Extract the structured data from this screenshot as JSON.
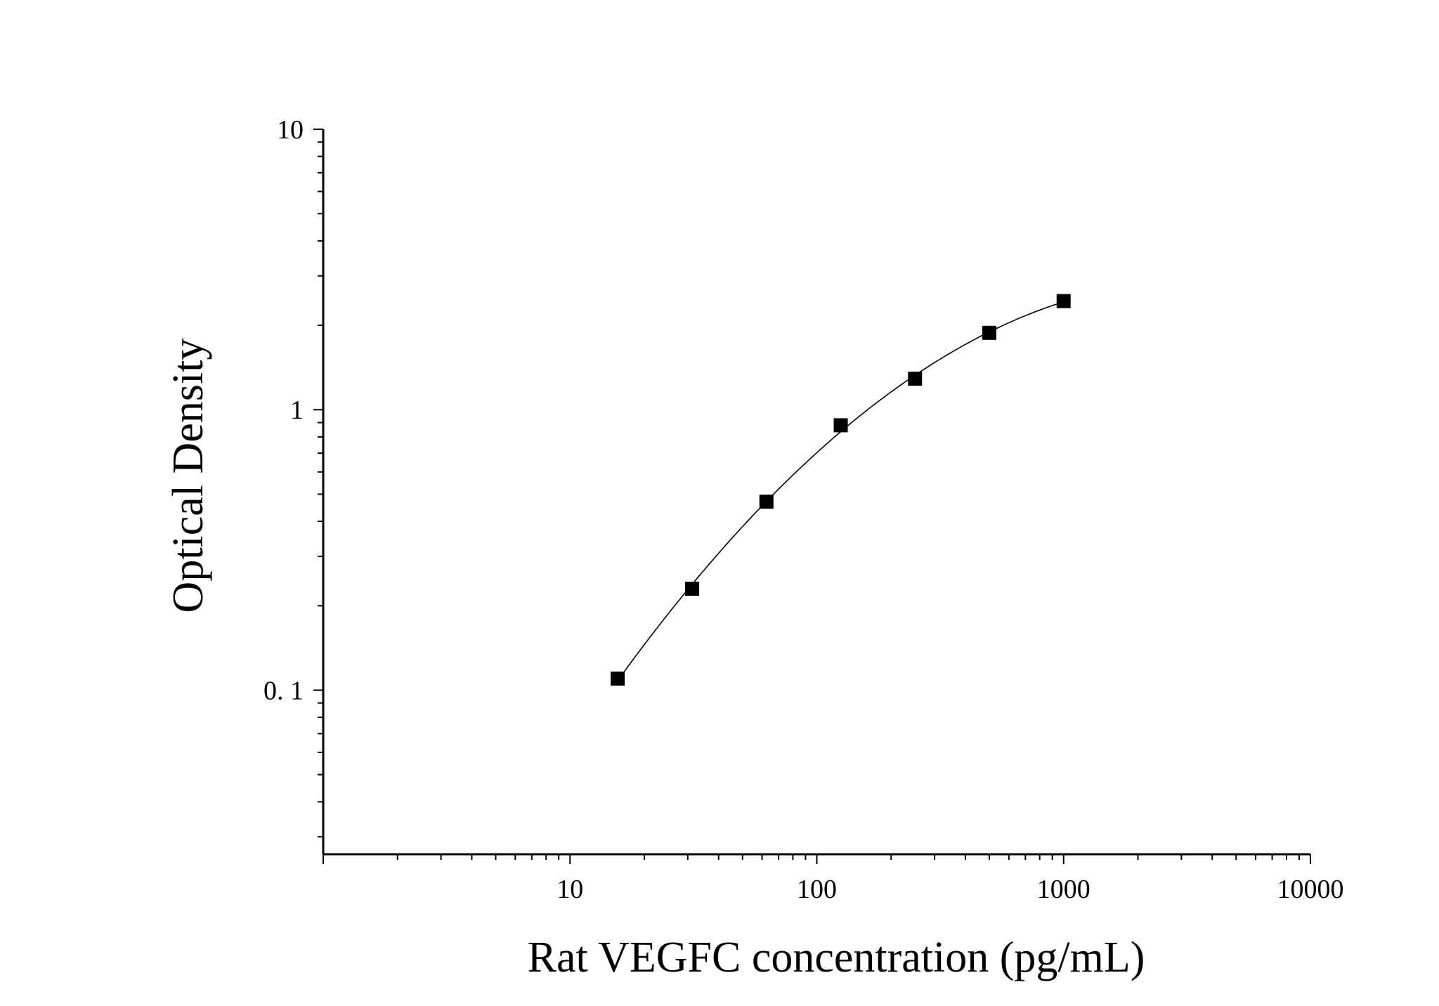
{
  "chart_data": {
    "type": "scatter",
    "title": "",
    "xlabel": "Rat VEGFC concentration (pg/mL)",
    "ylabel": "Optical Density",
    "x_scale": "log",
    "y_scale": "log",
    "xlim": [
      1,
      10000
    ],
    "ylim": [
      0.026,
      10
    ],
    "x_tick_labels": [
      "10",
      "100",
      "1000",
      "10000"
    ],
    "x_tick_values": [
      10,
      100,
      1000,
      10000
    ],
    "y_tick_labels": [
      "0. 1",
      "1",
      "10"
    ],
    "y_tick_values": [
      0.1,
      1,
      10
    ],
    "grid": false,
    "legend": "none",
    "marker": "square",
    "colors": {
      "marker": "#000000",
      "curve": "#000000",
      "axis": "#000000"
    },
    "series": [
      {
        "x": [
          15.6,
          31.25,
          62.5,
          125,
          250,
          500,
          1000
        ],
        "y": [
          0.11,
          0.23,
          0.47,
          0.88,
          1.29,
          1.88,
          2.44
        ]
      }
    ],
    "fit_curve": {
      "type": "smooth",
      "x_range": [
        16,
        1000
      ]
    }
  }
}
